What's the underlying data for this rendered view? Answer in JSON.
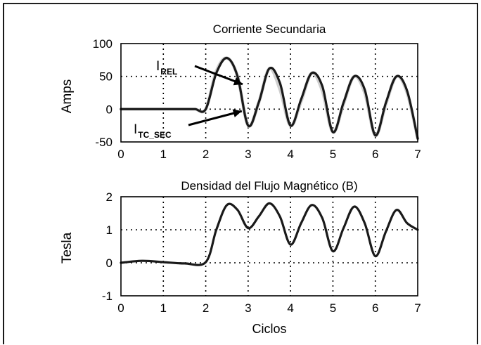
{
  "chart_data": [
    {
      "type": "line",
      "title": "Corriente Secundaria",
      "ylabel": "Amps",
      "xlabel": "",
      "xlim": [
        0,
        7
      ],
      "ylim": [
        -50,
        100
      ],
      "xticks": [
        0,
        1,
        2,
        3,
        4,
        5,
        6,
        7
      ],
      "yticks": [
        -50,
        0,
        50,
        100
      ],
      "grid": true,
      "series": [
        {
          "name": "I_REL",
          "color": "#cfcfcf",
          "x": [
            0,
            0.25,
            0.5,
            0.75,
            1,
            1.25,
            1.5,
            1.75,
            2,
            2.25,
            2.5,
            2.75,
            3,
            3.25,
            3.5,
            3.75,
            4,
            4.25,
            4.5,
            4.75,
            5,
            5.25,
            5.5,
            5.75,
            6,
            6.25,
            6.5,
            6.75,
            7
          ],
          "y": [
            0,
            0,
            0,
            0,
            0,
            0,
            0,
            0,
            0,
            58,
            78,
            50,
            -25,
            10,
            62,
            30,
            -25,
            12,
            55,
            28,
            -35,
            8,
            50,
            25,
            -40,
            8,
            50,
            25,
            -45
          ]
        },
        {
          "name": "I_TC_SEC",
          "color": "#1a1a1a",
          "x": [
            0,
            0.25,
            0.5,
            0.75,
            1,
            1.25,
            1.5,
            1.75,
            2,
            2.25,
            2.5,
            2.75,
            3,
            3.25,
            3.5,
            3.75,
            4,
            4.25,
            4.5,
            4.75,
            5,
            5.25,
            5.5,
            5.75,
            6,
            6.25,
            6.5,
            6.75,
            7
          ],
          "y": [
            0,
            0,
            0,
            0,
            0,
            0,
            0,
            0,
            0,
            55,
            78,
            50,
            -25,
            10,
            62,
            40,
            -25,
            15,
            55,
            35,
            -35,
            10,
            50,
            30,
            -40,
            10,
            50,
            28,
            -45
          ]
        }
      ],
      "annotations": [
        {
          "text": "I",
          "sub": "REL",
          "target_x": 2.87,
          "target_y": 38
        },
        {
          "text": "I",
          "sub": "TC_SEC",
          "target_x": 2.85,
          "target_y": -3
        }
      ]
    },
    {
      "type": "line",
      "title": "Densidad del Flujo Magnético (B)",
      "ylabel": "Tesla",
      "xlabel": "Ciclos",
      "xlim": [
        0,
        7
      ],
      "ylim": [
        -1,
        2
      ],
      "xticks": [
        0,
        1,
        2,
        3,
        4,
        5,
        6,
        7
      ],
      "yticks": [
        -1,
        0,
        1,
        2
      ],
      "grid": true,
      "series": [
        {
          "name": "B",
          "color": "#1a1a1a",
          "x": [
            0,
            0.5,
            1,
            1.5,
            2,
            2.25,
            2.5,
            2.75,
            3,
            3.25,
            3.5,
            3.75,
            4,
            4.25,
            4.5,
            4.75,
            5,
            5.25,
            5.5,
            5.75,
            6,
            6.25,
            6.5,
            6.75,
            7
          ],
          "y": [
            0,
            0.06,
            0.02,
            -0.02,
            0.02,
            1.0,
            1.75,
            1.6,
            1.05,
            1.4,
            1.8,
            1.4,
            0.55,
            1.2,
            1.75,
            1.35,
            0.35,
            1.05,
            1.7,
            1.2,
            0.2,
            0.95,
            1.6,
            1.2,
            1.0
          ]
        }
      ]
    }
  ]
}
